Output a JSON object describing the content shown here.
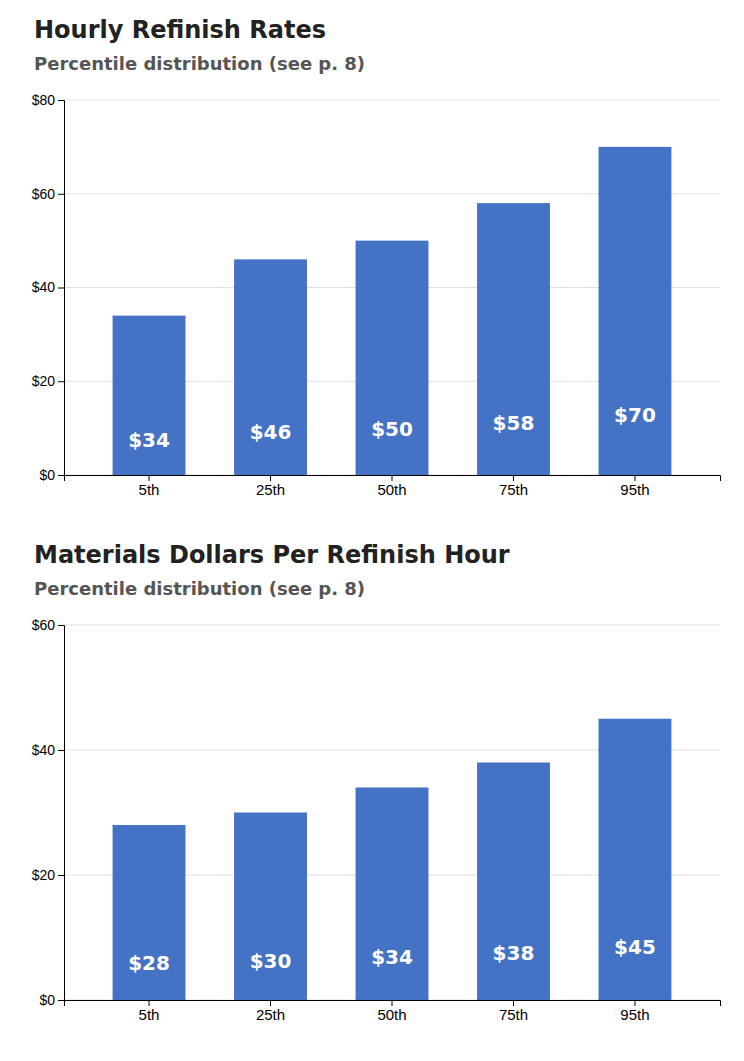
{
  "chart_data": [
    {
      "type": "bar",
      "title": "Hourly Refinish Rates",
      "subtitle": "Percentile distribution (see p. 8)",
      "categories": [
        "5th",
        "25th",
        "50th",
        "75th",
        "95th"
      ],
      "values": [
        34,
        46,
        50,
        58,
        70
      ],
      "value_labels": [
        "$34",
        "$46",
        "$50",
        "$58",
        "$70"
      ],
      "data_labels": true,
      "color": "#4472C4",
      "ylim": [
        0,
        80
      ],
      "yticks": [
        {
          "value": 0,
          "label": "$0"
        },
        {
          "value": 20,
          "label": "$20"
        },
        {
          "value": 40,
          "label": "$40"
        },
        {
          "value": 60,
          "label": "$60"
        },
        {
          "value": 80,
          "label": "$80"
        }
      ],
      "grid": true
    },
    {
      "type": "bar",
      "title": "Materials Dollars Per Refinish Hour",
      "subtitle": "Percentile distribution (see p. 8)",
      "categories": [
        "5th",
        "25th",
        "50th",
        "75th",
        "95th"
      ],
      "values": [
        28,
        30,
        34,
        38,
        45
      ],
      "value_labels": [
        "$28",
        "$30",
        "$34",
        "$38",
        "$45"
      ],
      "data_labels": true,
      "color": "#4472C4",
      "ylim": [
        0,
        60
      ],
      "yticks": [
        {
          "value": 0,
          "label": "$0"
        },
        {
          "value": 20,
          "label": "$20"
        },
        {
          "value": 40,
          "label": "$40"
        },
        {
          "value": 60,
          "label": "$60"
        }
      ],
      "grid": true
    }
  ]
}
